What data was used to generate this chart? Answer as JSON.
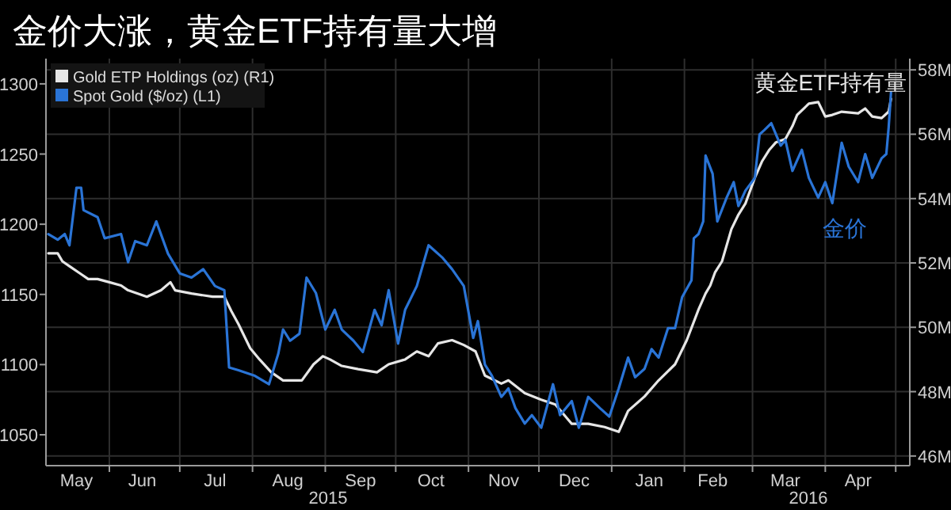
{
  "chart_data": {
    "type": "line",
    "title": "金价大涨，黄金ETF持有量大增",
    "xlim": [
      "2015-05-05",
      "2016-05-07"
    ],
    "xticks": [
      {
        "value": "2015-05-18",
        "label": "May"
      },
      {
        "value": "2015-06-01",
        "label": null
      },
      {
        "value": "2015-06-15",
        "label": "Jun"
      },
      {
        "value": "2015-07-01",
        "label": null
      },
      {
        "value": "2015-07-16",
        "label": "Jul"
      },
      {
        "value": "2015-08-01",
        "label": null
      },
      {
        "value": "2015-08-16",
        "label": "Aug"
      },
      {
        "value": "2015-09-01",
        "label": null
      },
      {
        "value": "2015-09-16",
        "label": "Sep"
      },
      {
        "value": "2015-10-01",
        "label": null
      },
      {
        "value": "2015-10-16",
        "label": "Oct"
      },
      {
        "value": "2015-11-01",
        "label": null
      },
      {
        "value": "2015-11-16",
        "label": "Nov"
      },
      {
        "value": "2015-12-01",
        "label": null
      },
      {
        "value": "2015-12-16",
        "label": "Dec"
      },
      {
        "value": "2016-01-01",
        "label": null
      },
      {
        "value": "2016-01-17",
        "label": "Jan"
      },
      {
        "value": "2016-02-01",
        "label": null
      },
      {
        "value": "2016-02-13",
        "label": "Feb"
      },
      {
        "value": "2016-03-01",
        "label": null
      },
      {
        "value": "2016-03-15",
        "label": "Mar"
      },
      {
        "value": "2016-04-01",
        "label": null
      },
      {
        "value": "2016-04-15",
        "label": "Apr"
      },
      {
        "value": "2016-05-01",
        "label": null
      }
    ],
    "ylim": [
      1028,
      1318
    ],
    "yticks": [
      1050,
      1100,
      1150,
      1200,
      1250,
      1300
    ],
    "y2lim": [
      45.7,
      58.35
    ],
    "y2ticks": [
      {
        "value": 46,
        "label": "46M"
      },
      {
        "value": 48,
        "label": "48M"
      },
      {
        "value": 50,
        "label": "50M"
      },
      {
        "value": 52,
        "label": "52M"
      },
      {
        "value": 54,
        "label": "54M"
      },
      {
        "value": 56,
        "label": "56M"
      },
      {
        "value": 58,
        "label": "58M"
      }
    ],
    "grid": true,
    "legend": "top left",
    "series": [
      {
        "name": "Gold ETP Holdings (oz) (R1)",
        "color": "#e6e6e6",
        "axis": "y2",
        "x": [
          "2015-05-06",
          "2015-05-10",
          "2015-05-12",
          "2015-05-15",
          "2015-05-20",
          "2015-05-23",
          "2015-05-27",
          "2015-06-01",
          "2015-06-06",
          "2015-06-09",
          "2015-06-17",
          "2015-06-23",
          "2015-06-27",
          "2015-06-29",
          "2015-07-06",
          "2015-07-15",
          "2015-07-20",
          "2015-07-23",
          "2015-07-26",
          "2015-07-31",
          "2015-08-04",
          "2015-08-09",
          "2015-08-14",
          "2015-08-19",
          "2015-08-22",
          "2015-08-27",
          "2015-08-31",
          "2015-09-03",
          "2015-09-08",
          "2015-09-15",
          "2015-09-23",
          "2015-09-28",
          "2015-10-05",
          "2015-10-10",
          "2015-10-15",
          "2015-10-19",
          "2015-10-25",
          "2015-10-30",
          "2015-11-04",
          "2015-11-08",
          "2015-11-15",
          "2015-11-18",
          "2015-11-25",
          "2015-12-02",
          "2015-12-08",
          "2015-12-15",
          "2015-12-22",
          "2015-12-29",
          "2016-01-04",
          "2016-01-08",
          "2016-01-15",
          "2016-01-21",
          "2016-01-28",
          "2016-02-02",
          "2016-02-07",
          "2016-02-10",
          "2016-02-12",
          "2016-02-14",
          "2016-02-17",
          "2016-02-21",
          "2016-02-24",
          "2016-02-27",
          "2016-03-02",
          "2016-03-05",
          "2016-03-08",
          "2016-03-11",
          "2016-03-15",
          "2016-03-18",
          "2016-03-20",
          "2016-03-25",
          "2016-03-29",
          "2016-04-01",
          "2016-04-04",
          "2016-04-08",
          "2016-04-15",
          "2016-04-18",
          "2016-04-21",
          "2016-04-25",
          "2016-04-28",
          "2016-04-29"
        ],
        "values": [
          52.3,
          52.3,
          52.05,
          51.9,
          51.65,
          51.5,
          51.5,
          51.4,
          51.3,
          51.15,
          50.95,
          51.15,
          51.4,
          51.15,
          51.05,
          50.95,
          50.95,
          50.5,
          50.1,
          49.35,
          49.0,
          48.6,
          48.35,
          48.35,
          48.35,
          48.85,
          49.1,
          49.0,
          48.8,
          48.7,
          48.6,
          48.85,
          49.0,
          49.25,
          49.1,
          49.5,
          49.6,
          49.45,
          49.25,
          48.5,
          48.25,
          48.35,
          47.95,
          47.75,
          47.6,
          47.0,
          47.0,
          46.9,
          46.75,
          47.4,
          47.85,
          48.35,
          48.85,
          49.6,
          50.55,
          51.05,
          51.3,
          51.7,
          52.05,
          53.05,
          53.5,
          53.85,
          54.65,
          55.15,
          55.5,
          55.75,
          55.85,
          56.25,
          56.6,
          56.95,
          57.0,
          56.55,
          56.6,
          56.7,
          56.65,
          56.8,
          56.55,
          56.5,
          56.7,
          57.1
        ]
      },
      {
        "name": "Spot Gold ($/oz) (L1)",
        "color": "#2a74d6",
        "x": [
          "2015-05-06",
          "2015-05-10",
          "2015-05-13",
          "2015-05-15",
          "2015-05-18",
          "2015-05-20",
          "2015-05-21",
          "2015-05-27",
          "2015-05-30",
          "2015-06-06",
          "2015-06-09",
          "2015-06-12",
          "2015-06-17",
          "2015-06-21",
          "2015-06-26",
          "2015-07-01",
          "2015-07-06",
          "2015-07-11",
          "2015-07-16",
          "2015-07-20",
          "2015-07-22",
          "2015-07-26",
          "2015-08-02",
          "2015-08-08",
          "2015-08-12",
          "2015-08-14",
          "2015-08-17",
          "2015-08-21",
          "2015-08-24",
          "2015-08-28",
          "2015-09-01",
          "2015-09-05",
          "2015-09-08",
          "2015-09-13",
          "2015-09-17",
          "2015-09-22",
          "2015-09-25",
          "2015-09-28",
          "2015-10-02",
          "2015-10-05",
          "2015-10-10",
          "2015-10-15",
          "2015-10-21",
          "2015-10-25",
          "2015-10-30",
          "2015-11-03",
          "2015-11-05",
          "2015-11-08",
          "2015-11-11",
          "2015-11-15",
          "2015-11-18",
          "2015-11-21",
          "2015-11-25",
          "2015-11-28",
          "2015-12-02",
          "2015-12-07",
          "2015-12-10",
          "2015-12-15",
          "2015-12-18",
          "2015-12-22",
          "2015-12-27",
          "2015-12-31",
          "2016-01-04",
          "2016-01-08",
          "2016-01-11",
          "2016-01-15",
          "2016-01-18",
          "2016-01-21",
          "2016-01-25",
          "2016-01-28",
          "2016-01-31",
          "2016-02-04",
          "2016-02-05",
          "2016-02-07",
          "2016-02-09",
          "2016-02-10",
          "2016-02-13",
          "2016-02-15",
          "2016-02-19",
          "2016-02-22",
          "2016-02-24",
          "2016-02-27",
          "2016-03-02",
          "2016-03-04",
          "2016-03-06",
          "2016-03-09",
          "2016-03-13",
          "2016-03-15",
          "2016-03-18",
          "2016-03-22",
          "2016-03-25",
          "2016-03-29",
          "2016-04-01",
          "2016-04-04",
          "2016-04-08",
          "2016-04-11",
          "2016-04-15",
          "2016-04-18",
          "2016-04-21",
          "2016-04-25",
          "2016-04-27",
          "2016-04-28",
          "2016-04-29"
        ],
        "values": [
          1193,
          1189,
          1193,
          1185,
          1226,
          1226,
          1210,
          1205,
          1190,
          1193,
          1173,
          1188,
          1185,
          1202,
          1179,
          1165,
          1162,
          1168,
          1156,
          1153,
          1098,
          1096,
          1092,
          1086,
          1108,
          1125,
          1117,
          1122,
          1162,
          1151,
          1125,
          1139,
          1125,
          1117,
          1109,
          1139,
          1128,
          1153,
          1115,
          1139,
          1156,
          1185,
          1176,
          1168,
          1156,
          1119,
          1131,
          1100,
          1092,
          1077,
          1083,
          1069,
          1058,
          1064,
          1055,
          1086,
          1064,
          1074,
          1055,
          1077,
          1069,
          1063,
          1083,
          1105,
          1091,
          1097,
          1111,
          1105,
          1126,
          1126,
          1148,
          1160,
          1190,
          1193,
          1202,
          1249,
          1236,
          1202,
          1219,
          1230,
          1213,
          1224,
          1233,
          1264,
          1267,
          1272,
          1256,
          1260,
          1238,
          1253,
          1233,
          1219,
          1230,
          1215,
          1258,
          1241,
          1230,
          1250,
          1233,
          1247,
          1250,
          1269,
          1294
        ]
      }
    ],
    "annotations": [
      "黄金ETF持有量",
      "金价",
      "2015",
      "2016"
    ]
  }
}
